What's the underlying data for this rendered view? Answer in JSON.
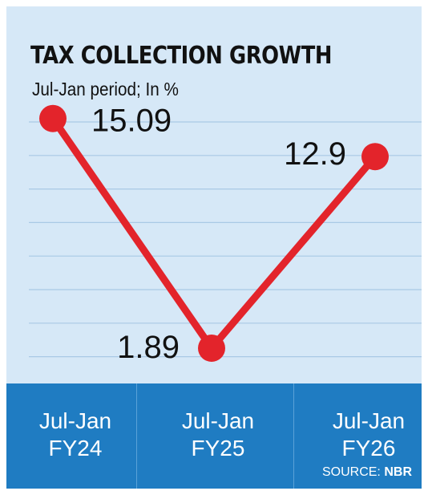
{
  "chart_data": {
    "type": "line",
    "title": "TAX COLLECTION GROWTH",
    "subtitle": "Jul-Jan period; In %",
    "categories": [
      {
        "line1": "Jul-Jan",
        "line2": "FY24"
      },
      {
        "line1": "Jul-Jan",
        "line2": "FY25"
      },
      {
        "line1": "Jul-Jan",
        "line2": "FY26"
      }
    ],
    "values": [
      15.09,
      1.89,
      12.9
    ],
    "data_labels": [
      "15.09",
      "1.89",
      "12.9"
    ],
    "ylim": [
      0,
      16
    ],
    "grid": true,
    "colors": {
      "line": "#e3242b",
      "plot_background": "#d6e8f7",
      "gridline": "#a9c9e6",
      "category_band": "#1f7cc2"
    }
  },
  "source": {
    "label": "SOURCE:",
    "value": "NBR"
  }
}
